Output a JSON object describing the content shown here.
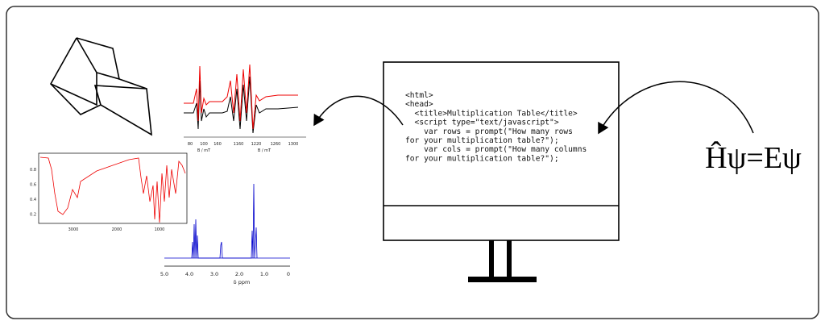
{
  "monitor": {
    "code": [
      "<html>",
      "<head>",
      "  <title>Multiplication Table</title>",
      "  <script type=\"text/javascript\">",
      "    var rows = prompt(\"How many rows",
      "for your multiplication table?\");",
      "    var cols = prompt(\"How many columns",
      "for your multiplication table?\");"
    ]
  },
  "equation": "Ĥψ=Eψ",
  "epr_spectrum": {
    "left_ticks": [
      "80",
      "100",
      "160"
    ],
    "right_ticks": [
      "1160",
      "1220",
      "1260",
      "1300"
    ],
    "left_label": "B / mT",
    "right_label": "B / mT"
  },
  "ir_spectrum": {
    "y_ticks": [
      "0.8",
      "0.6",
      "0.4",
      "0.2"
    ],
    "x_ticks": [
      "3000",
      "2000",
      "1000"
    ]
  },
  "nmr_spectrum": {
    "x_ticks": [
      "5.0",
      "4.0",
      "3.0",
      "2.0",
      "1.0",
      "0"
    ],
    "x_label": "δ ppm"
  }
}
